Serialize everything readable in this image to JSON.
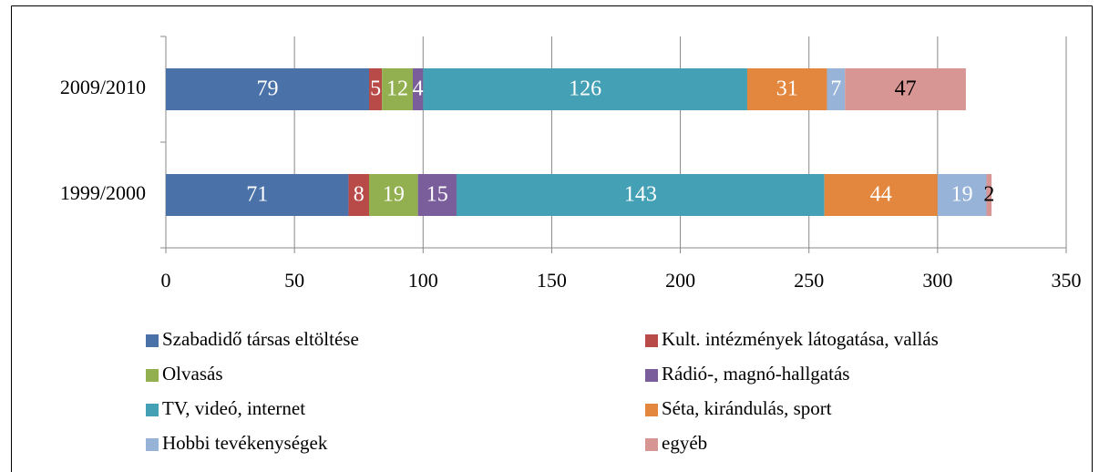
{
  "chart_data": {
    "type": "stacked-barh",
    "categories": [
      "2009/2010",
      "1999/2000"
    ],
    "series": [
      {
        "name": "Szabadidő társas eltöltése",
        "color": "#4a72a8",
        "label_color": "#ffffff",
        "values": [
          79,
          71
        ]
      },
      {
        "name": "Kult. intézmények látogatása, vallás",
        "color": "#b84a48",
        "label_color": "#ffffff",
        "values": [
          5,
          8
        ]
      },
      {
        "name": "Olvasás",
        "color": "#93b050",
        "label_color": "#ffffff",
        "values": [
          12,
          19
        ]
      },
      {
        "name": "Rádió-, magnó-hallgatás",
        "color": "#7a5e9b",
        "label_color": "#ffffff",
        "values": [
          4,
          15
        ]
      },
      {
        "name": "TV, videó, internet",
        "color": "#44a0b4",
        "label_color": "#ffffff",
        "values": [
          126,
          143
        ]
      },
      {
        "name": "Séta, kirándulás, sport",
        "color": "#e3873e",
        "label_color": "#ffffff",
        "values": [
          31,
          44
        ]
      },
      {
        "name": "Hobbi tevékenységek",
        "color": "#97b3d8",
        "label_color": "#ffffff",
        "values": [
          7,
          19
        ]
      },
      {
        "name": "egyéb",
        "color": "#d79594",
        "label_color": "#000000",
        "values": [
          47,
          2
        ]
      }
    ],
    "xlim": [
      0,
      350
    ],
    "xticks": [
      0,
      50,
      100,
      150,
      200,
      250,
      300,
      350
    ],
    "grid": true,
    "legend": "bottom"
  }
}
